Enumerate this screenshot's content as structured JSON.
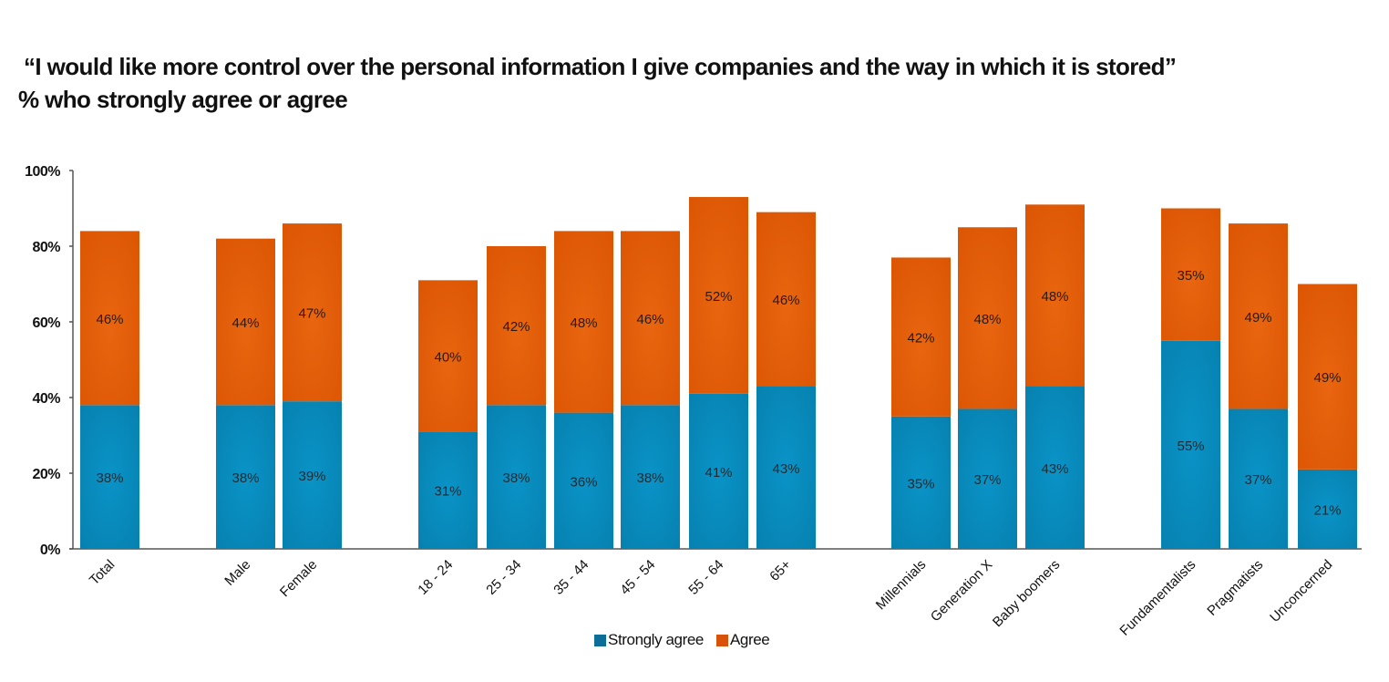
{
  "chart_data": {
    "type": "bar",
    "stacked": true,
    "title": "“I would like more control over the personal information I give companies and the way in which it is stored”",
    "subtitle": "% who strongly agree or agree",
    "xlabel": "",
    "ylabel": "",
    "ylim": [
      0,
      100
    ],
    "y_ticks": [
      "0%",
      "20%",
      "40%",
      "60%",
      "80%",
      "100%"
    ],
    "y_tick_values": [
      0,
      20,
      40,
      60,
      80,
      100
    ],
    "grid": false,
    "legend_position": "bottom-center",
    "groups": [
      [
        "Total"
      ],
      [
        "Male",
        "Female"
      ],
      [
        "18 - 24",
        "25 - 34",
        "35 - 44",
        "45 - 54",
        "55 - 64",
        "65+"
      ],
      [
        "Millennials",
        "Generation X",
        "Baby boomers"
      ],
      [
        "Fundamentalists",
        "Pragmatists",
        "Unconcerned"
      ]
    ],
    "categories": [
      "Total",
      "Male",
      "Female",
      "18 - 24",
      "25 - 34",
      "35 - 44",
      "45 - 54",
      "55 - 64",
      "65+",
      "Millennials",
      "Generation X",
      "Baby boomers",
      "Fundamentalists",
      "Pragmatists",
      "Unconcerned"
    ],
    "series": [
      {
        "name": "Strongly agree",
        "color": "#0a8fc2",
        "values": [
          38,
          38,
          39,
          31,
          38,
          36,
          38,
          41,
          43,
          35,
          37,
          43,
          55,
          37,
          21
        ],
        "labels": [
          "38%",
          "38%",
          "39%",
          "31%",
          "38%",
          "36%",
          "38%",
          "41%",
          "43%",
          "35%",
          "37%",
          "43%",
          "55%",
          "37%",
          "21%"
        ]
      },
      {
        "name": "Agree",
        "color": "#e35b07",
        "values": [
          46,
          44,
          47,
          40,
          42,
          48,
          46,
          52,
          46,
          42,
          48,
          48,
          35,
          49,
          49
        ],
        "labels": [
          "46%",
          "44%",
          "47%",
          "40%",
          "42%",
          "48%",
          "46%",
          "52%",
          "46%",
          "42%",
          "48%",
          "48%",
          "35%",
          "49%",
          "49%"
        ]
      }
    ]
  },
  "legend": {
    "items": [
      {
        "label": "Strongly agree",
        "color": "#0a6e98"
      },
      {
        "label": "Agree",
        "color": "#d8520a"
      }
    ]
  }
}
